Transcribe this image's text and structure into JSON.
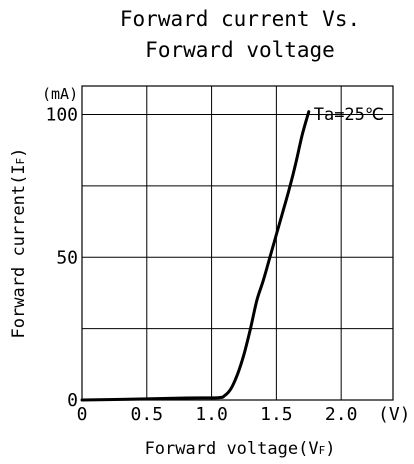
{
  "chart_data": {
    "type": "line",
    "title_lines": [
      "Forward current Vs.",
      "Forward voltage"
    ],
    "xlabel": "Forward voltage(V",
    "xlabel_sub": "F",
    "xlabel_end": ")",
    "ylabel": "Forward current(I",
    "ylabel_sub": "F",
    "ylabel_end": ")",
    "x_unit": "(V)",
    "y_unit": "(mA)",
    "annotation": "Ta=25℃",
    "xlim": [
      0,
      2.4
    ],
    "ylim": [
      0,
      110
    ],
    "x_ticks": [
      {
        "value": 0,
        "label": "0"
      },
      {
        "value": 0.5,
        "label": "0.5"
      },
      {
        "value": 1.0,
        "label": "1.0"
      },
      {
        "value": 1.5,
        "label": "1.5"
      },
      {
        "value": 2.0,
        "label": "2.0"
      }
    ],
    "y_ticks": [
      {
        "value": 0,
        "label": "0"
      },
      {
        "value": 50,
        "label": "50"
      },
      {
        "value": 100,
        "label": "100"
      }
    ],
    "y_grid": [
      25,
      50,
      75,
      100
    ],
    "grid": true,
    "series": [
      {
        "color": "#000000",
        "x": [
          0,
          0.4,
          0.8,
          1.05,
          1.1,
          1.15,
          1.2,
          1.25,
          1.3,
          1.35,
          1.4,
          1.45,
          1.5,
          1.55,
          1.6,
          1.65,
          1.7,
          1.75
        ],
        "y": [
          0,
          0.3,
          0.7,
          0.8,
          1.5,
          4,
          9,
          16,
          25,
          35,
          42,
          50,
          58,
          66,
          74,
          83,
          93,
          101
        ]
      }
    ]
  }
}
